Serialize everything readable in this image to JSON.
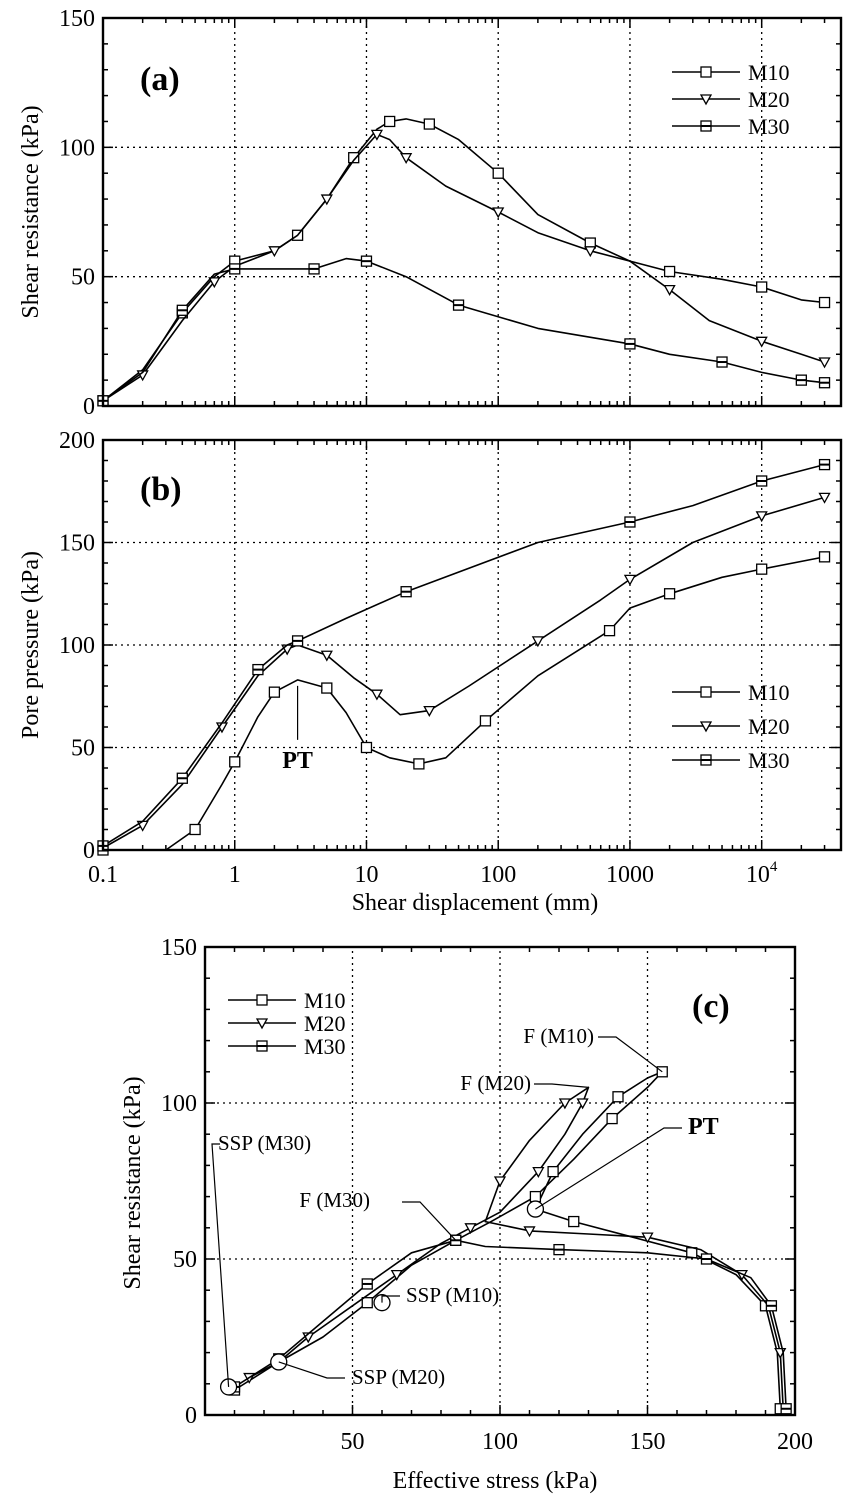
{
  "chart_data": [
    {
      "id": "a",
      "type": "line",
      "panel_label": "(a)",
      "xlabel": "",
      "ylabel": "Shear resistance (kPa)",
      "x_scale": "log",
      "xlim": [
        0.1,
        40000
      ],
      "ylim": [
        0,
        150
      ],
      "yticks": [
        0,
        50,
        100,
        150
      ],
      "grid": true,
      "legend": "top-right",
      "series": [
        {
          "name": "M10",
          "marker": "square",
          "points": [
            [
              0.1,
              2
            ],
            [
              0.2,
              14
            ],
            [
              0.4,
              36
            ],
            [
              0.7,
              50
            ],
            [
              1,
              56
            ],
            [
              2,
              60
            ],
            [
              3,
              66
            ],
            [
              5,
              80
            ],
            [
              8,
              96
            ],
            [
              12,
              107
            ],
            [
              15,
              110
            ],
            [
              20,
              111
            ],
            [
              30,
              109
            ],
            [
              50,
              103
            ],
            [
              100,
              90
            ],
            [
              200,
              74
            ],
            [
              500,
              63
            ],
            [
              1000,
              56
            ],
            [
              2000,
              52
            ],
            [
              5000,
              49
            ],
            [
              10000,
              46
            ],
            [
              20000,
              41
            ],
            [
              30000,
              40
            ]
          ]
        },
        {
          "name": "M20",
          "marker": "triangle",
          "points": [
            [
              0.1,
              2
            ],
            [
              0.2,
              12
            ],
            [
              0.4,
              33
            ],
            [
              0.7,
              48
            ],
            [
              1,
              54
            ],
            [
              2,
              60
            ],
            [
              3,
              66
            ],
            [
              5,
              80
            ],
            [
              8,
              95
            ],
            [
              12,
              105
            ],
            [
              15,
              103
            ],
            [
              20,
              96
            ],
            [
              40,
              85
            ],
            [
              100,
              75
            ],
            [
              200,
              67
            ],
            [
              500,
              60
            ],
            [
              1000,
              56
            ],
            [
              2000,
              45
            ],
            [
              4000,
              33
            ],
            [
              10000,
              25
            ],
            [
              20000,
              20
            ],
            [
              30000,
              17
            ]
          ]
        },
        {
          "name": "M30",
          "marker": "filled-square",
          "points": [
            [
              0.1,
              2
            ],
            [
              0.2,
              13
            ],
            [
              0.4,
              37
            ],
            [
              0.7,
              51
            ],
            [
              1,
              53
            ],
            [
              2,
              53
            ],
            [
              4,
              53
            ],
            [
              7,
              57
            ],
            [
              10,
              56
            ],
            [
              20,
              50
            ],
            [
              50,
              39
            ],
            [
              200,
              30
            ],
            [
              1000,
              24
            ],
            [
              2000,
              20
            ],
            [
              5000,
              17
            ],
            [
              10000,
              13
            ],
            [
              20000,
              10
            ],
            [
              30000,
              9
            ]
          ]
        }
      ]
    },
    {
      "id": "b",
      "type": "line",
      "panel_label": "(b)",
      "xlabel": "Shear displacement (mm)",
      "ylabel": "Pore pressure (kPa)",
      "x_scale": "log",
      "xlim": [
        0.1,
        40000
      ],
      "ylim": [
        0,
        200
      ],
      "yticks": [
        0,
        50,
        100,
        150,
        200
      ],
      "xticks": [
        "0.1",
        "1",
        "10",
        "100",
        "1000",
        "10"
      ],
      "xtick_last_superscript": "4",
      "grid": true,
      "legend": "bottom-right",
      "annotations": [
        {
          "text": "PT",
          "x": 3,
          "y": 83
        }
      ],
      "series": [
        {
          "name": "M10",
          "marker": "square",
          "points": [
            [
              0.1,
              0
            ],
            [
              0.3,
              0
            ],
            [
              0.5,
              10
            ],
            [
              0.8,
              32
            ],
            [
              1,
              43
            ],
            [
              1.5,
              65
            ],
            [
              2,
              77
            ],
            [
              3,
              83
            ],
            [
              5,
              79
            ],
            [
              7,
              67
            ],
            [
              10,
              50
            ],
            [
              15,
              45
            ],
            [
              25,
              42
            ],
            [
              40,
              45
            ],
            [
              80,
              63
            ],
            [
              200,
              85
            ],
            [
              700,
              107
            ],
            [
              1000,
              118
            ],
            [
              2000,
              125
            ],
            [
              5000,
              133
            ],
            [
              10000,
              137
            ],
            [
              30000,
              143
            ]
          ]
        },
        {
          "name": "M20",
          "marker": "triangle",
          "points": [
            [
              0.1,
              1
            ],
            [
              0.2,
              12
            ],
            [
              0.4,
              32
            ],
            [
              0.8,
              60
            ],
            [
              1.5,
              85
            ],
            [
              2.5,
              98
            ],
            [
              3,
              100
            ],
            [
              5,
              95
            ],
            [
              8,
              84
            ],
            [
              12,
              76
            ],
            [
              18,
              66
            ],
            [
              30,
              68
            ],
            [
              60,
              80
            ],
            [
              200,
              102
            ],
            [
              600,
              122
            ],
            [
              1000,
              132
            ],
            [
              3000,
              150
            ],
            [
              10000,
              163
            ],
            [
              30000,
              172
            ]
          ]
        },
        {
          "name": "M30",
          "marker": "filled-square",
          "points": [
            [
              0.1,
              2
            ],
            [
              0.2,
              14
            ],
            [
              0.4,
              35
            ],
            [
              0.8,
              62
            ],
            [
              1.5,
              88
            ],
            [
              2.5,
              100
            ],
            [
              3,
              102
            ],
            [
              7,
              113
            ],
            [
              20,
              126
            ],
            [
              200,
              150
            ],
            [
              1000,
              160
            ],
            [
              3000,
              168
            ],
            [
              10000,
              180
            ],
            [
              30000,
              188
            ]
          ]
        }
      ]
    },
    {
      "id": "c",
      "type": "line",
      "panel_label": "(c)",
      "xlabel": "Effective stress (kPa)",
      "ylabel": "Shear resistance (kPa)",
      "xlim": [
        0,
        200
      ],
      "ylim": [
        0,
        150
      ],
      "xticks": [
        50,
        100,
        150,
        200
      ],
      "yticks": [
        0,
        50,
        100,
        150
      ],
      "grid": true,
      "legend": "top-left",
      "annotations": [
        {
          "text": "F (M10)",
          "x": 155,
          "y": 110
        },
        {
          "text": "F (M20)",
          "x": 130,
          "y": 105
        },
        {
          "text": "F (M30)",
          "x": 85,
          "y": 56
        },
        {
          "text": "PT",
          "x": 112,
          "y": 66
        },
        {
          "text": "SSP (M30)",
          "x": 8,
          "y": 9
        },
        {
          "text": "SSP (M10)",
          "x": 60,
          "y": 36
        },
        {
          "text": "SSP (M20)",
          "x": 25,
          "y": 17
        }
      ],
      "series": [
        {
          "name": "M10",
          "marker": "square",
          "points": [
            [
              195,
              2
            ],
            [
              194,
              20
            ],
            [
              190,
              35
            ],
            [
              180,
              45
            ],
            [
              165,
              52
            ],
            [
              145,
              57
            ],
            [
              125,
              62
            ],
            [
              112,
              66
            ],
            [
              118,
              78
            ],
            [
              128,
              90
            ],
            [
              140,
              102
            ],
            [
              150,
              108
            ],
            [
              155,
              110
            ],
            [
              150,
              105
            ],
            [
              138,
              95
            ],
            [
              125,
              82
            ],
            [
              112,
              70
            ],
            [
              97,
              62
            ],
            [
              85,
              56
            ],
            [
              70,
              48
            ],
            [
              55,
              36
            ],
            [
              40,
              25
            ],
            [
              25,
              17
            ],
            [
              10,
              8
            ]
          ]
        },
        {
          "name": "M20",
          "marker": "triangle",
          "points": [
            [
              196,
              2
            ],
            [
              195,
              20
            ],
            [
              191,
              35
            ],
            [
              182,
              45
            ],
            [
              168,
              53
            ],
            [
              150,
              57
            ],
            [
              130,
              58
            ],
            [
              110,
              59
            ],
            [
              95,
              62
            ],
            [
              100,
              75
            ],
            [
              110,
              88
            ],
            [
              122,
              100
            ],
            [
              130,
              105
            ],
            [
              128,
              100
            ],
            [
              122,
              90
            ],
            [
              113,
              78
            ],
            [
              100,
              65
            ],
            [
              90,
              60
            ],
            [
              80,
              55
            ],
            [
              65,
              45
            ],
            [
              50,
              35
            ],
            [
              35,
              25
            ],
            [
              25,
              17
            ],
            [
              15,
              12
            ]
          ]
        },
        {
          "name": "M30",
          "marker": "filled-square",
          "points": [
            [
              197,
              2
            ],
            [
              196,
              20
            ],
            [
              192,
              35
            ],
            [
              185,
              44
            ],
            [
              170,
              50
            ],
            [
              150,
              52
            ],
            [
              120,
              53
            ],
            [
              95,
              54
            ],
            [
              85,
              56
            ],
            [
              70,
              52
            ],
            [
              55,
              42
            ],
            [
              40,
              30
            ],
            [
              25,
              18
            ],
            [
              10,
              9
            ]
          ]
        }
      ]
    }
  ]
}
